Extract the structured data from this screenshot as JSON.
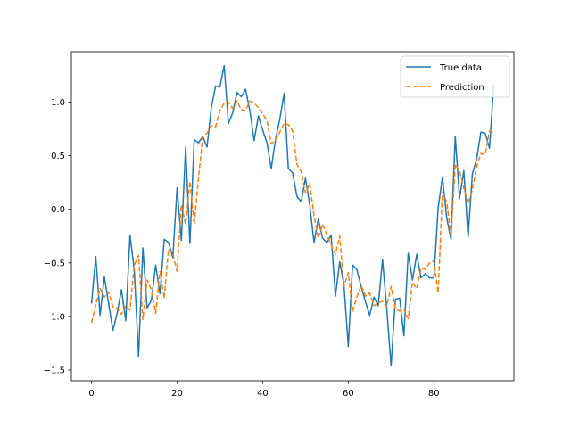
{
  "chart_data": {
    "type": "line",
    "title": "",
    "xlabel": "",
    "ylabel": "",
    "xlim": [
      -4.7,
      98.7
    ],
    "ylim": [
      -1.6,
      1.47
    ],
    "xticks": [
      0,
      20,
      40,
      60,
      80
    ],
    "yticks": [
      -1.5,
      -1.0,
      -0.5,
      0.0,
      0.5,
      1.0
    ],
    "ytick_labels": [
      "−1.5",
      "−1.0",
      "−0.5",
      "0.0",
      "0.5",
      "1.0"
    ],
    "grid": false,
    "legend_position": "top-right",
    "series": [
      {
        "name": "True data",
        "color": "#1f77b4",
        "style": "solid",
        "x": [
          0,
          1,
          2,
          3,
          4,
          5,
          6,
          7,
          8,
          9,
          10,
          11,
          12,
          13,
          14,
          15,
          16,
          17,
          18,
          19,
          20,
          21,
          22,
          23,
          24,
          25,
          26,
          27,
          28,
          29,
          30,
          31,
          32,
          33,
          34,
          35,
          36,
          37,
          38,
          39,
          40,
          41,
          42,
          43,
          44,
          45,
          46,
          47,
          48,
          49,
          50,
          51,
          52,
          53,
          54,
          55,
          56,
          57,
          58,
          59,
          60,
          61,
          62,
          63,
          64,
          65,
          66,
          67,
          68,
          69,
          70,
          71,
          72,
          73,
          74,
          75,
          76,
          77,
          78,
          79,
          80,
          81,
          82,
          83,
          84,
          85,
          86,
          87,
          88,
          89,
          90,
          91,
          92,
          93,
          94
        ],
        "y": [
          -0.88,
          -0.44,
          -0.99,
          -0.63,
          -0.88,
          -1.13,
          -0.97,
          -0.75,
          -1.04,
          -0.24,
          -0.57,
          -1.37,
          -0.36,
          -0.92,
          -0.85,
          -0.52,
          -0.79,
          -0.28,
          -0.31,
          -0.45,
          0.2,
          -0.29,
          0.58,
          -0.32,
          0.65,
          0.62,
          0.68,
          0.58,
          0.95,
          1.15,
          1.14,
          1.34,
          0.8,
          0.9,
          1.09,
          1.05,
          1.12,
          0.92,
          0.64,
          0.87,
          0.74,
          0.62,
          0.38,
          0.65,
          0.84,
          1.08,
          0.38,
          0.34,
          0.12,
          0.07,
          0.29,
          0.04,
          -0.31,
          -0.09,
          -0.27,
          -0.31,
          -0.24,
          -0.81,
          -0.49,
          -0.71,
          -1.28,
          -0.52,
          -0.56,
          -0.72,
          -0.86,
          -0.99,
          -0.82,
          -0.9,
          -0.47,
          -0.93,
          -1.46,
          -0.84,
          -0.83,
          -1.18,
          -0.41,
          -0.66,
          -0.42,
          -0.64,
          -0.6,
          -0.64,
          -0.64,
          0.01,
          0.3,
          -0.08,
          -0.28,
          0.68,
          0.1,
          0.36,
          -0.26,
          0.33,
          0.47,
          0.72,
          0.71,
          0.57,
          1.16
        ]
      },
      {
        "name": "Prediction",
        "color": "#ff7f0e",
        "style": "dashed",
        "x": [
          0,
          1,
          2,
          3,
          4,
          5,
          6,
          7,
          8,
          9,
          10,
          11,
          12,
          13,
          14,
          15,
          16,
          17,
          18,
          19,
          20,
          21,
          22,
          23,
          24,
          25,
          26,
          27,
          28,
          29,
          30,
          31,
          32,
          33,
          34,
          35,
          36,
          37,
          38,
          39,
          40,
          41,
          42,
          43,
          44,
          45,
          46,
          47,
          48,
          49,
          50,
          51,
          52,
          53,
          54,
          55,
          56,
          57,
          58,
          59,
          60,
          61,
          62,
          63,
          64,
          65,
          66,
          67,
          68,
          69,
          70,
          71,
          72,
          73,
          74,
          75,
          76,
          77,
          78,
          79,
          80,
          81,
          82,
          83,
          84,
          85,
          86,
          87,
          88,
          89,
          90,
          91,
          92,
          93,
          94
        ],
        "y": [
          -1.06,
          -0.89,
          -0.74,
          -0.82,
          -0.77,
          -0.91,
          -0.92,
          -0.98,
          -0.9,
          -0.94,
          -0.52,
          -0.43,
          -1.03,
          -0.66,
          -0.75,
          -0.97,
          -0.58,
          -0.83,
          -0.37,
          -0.41,
          -0.58,
          0.04,
          -0.14,
          0.26,
          -0.14,
          0.29,
          0.68,
          0.71,
          0.78,
          0.77,
          0.92,
          0.99,
          1.0,
          0.94,
          1.01,
          0.93,
          0.92,
          1.01,
          0.99,
          0.95,
          0.89,
          0.83,
          0.61,
          0.65,
          0.72,
          0.8,
          0.79,
          0.73,
          0.42,
          0.35,
          0.15,
          0.24,
          -0.06,
          -0.27,
          -0.14,
          -0.24,
          -0.33,
          -0.42,
          -0.25,
          -0.72,
          -0.59,
          -0.95,
          -0.82,
          -0.71,
          -0.81,
          -0.78,
          -0.9,
          -0.87,
          -0.86,
          -0.91,
          -0.72,
          -0.93,
          -0.95,
          -0.93,
          -1.02,
          -0.68,
          -0.74,
          -0.55,
          -0.56,
          -0.5,
          -0.48,
          -0.78,
          0.16,
          0.07,
          -0.25,
          0.42,
          0.36,
          0.2,
          0.05,
          0.18,
          0.4,
          0.52,
          0.51,
          0.73,
          0.71
        ]
      }
    ]
  }
}
